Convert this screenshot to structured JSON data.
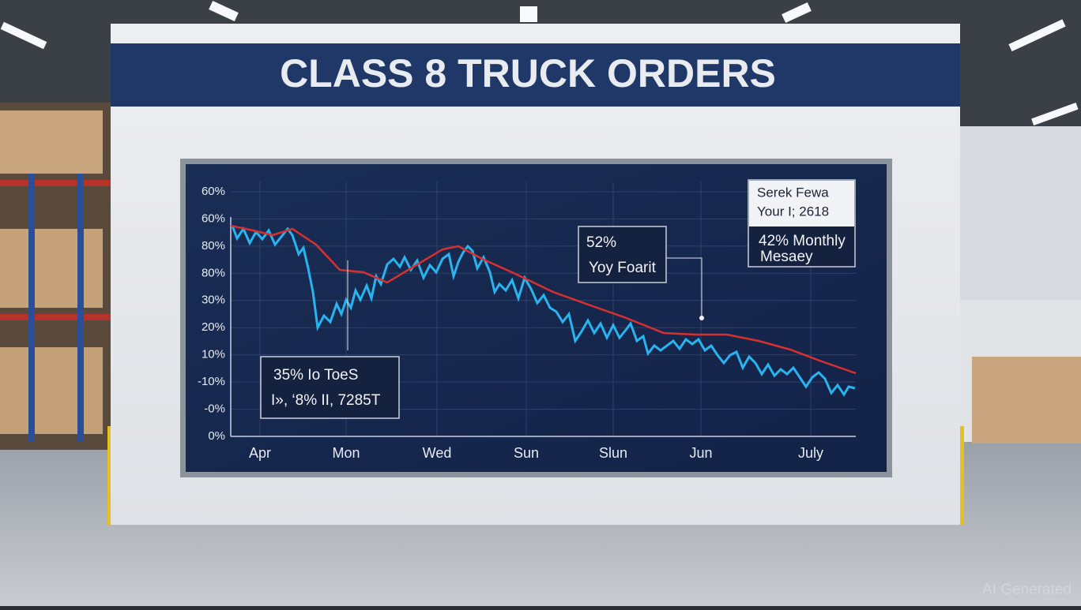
{
  "scene": {
    "title": "CLASS 8 TRUCK ORDERS",
    "screen": {
      "y_axis_labels": [
        "60%",
        "60%",
        "80%",
        "80%",
        "30%",
        "20%",
        "10%",
        "-10%",
        "-0%",
        "0%"
      ],
      "x_axis_labels": [
        "Apr",
        "Mon",
        "Wed",
        "Sun",
        "Slun",
        "Jun",
        "July"
      ],
      "callouts": [
        {
          "lines": [
            "35% Io ToeS",
            "I», ‘8% II, 7285T"
          ]
        },
        {
          "lines": [
            "52%",
            "Yoy Foarit"
          ]
        },
        {
          "lines": [
            "Serek Fewa",
            "Your I; 2618",
            "42% Monthly",
            "Mesaey"
          ]
        }
      ]
    },
    "watermark": "AI Generated"
  }
}
